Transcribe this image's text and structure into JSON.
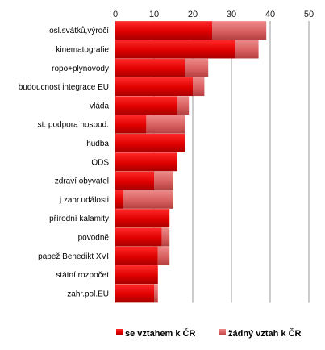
{
  "chart_data": {
    "type": "bar",
    "orientation": "horizontal",
    "stacked": true,
    "title": "",
    "xlabel": "",
    "ylabel": "",
    "xlim": [
      0,
      50
    ],
    "ticks": [
      0,
      10,
      20,
      30,
      40,
      50
    ],
    "grid": true,
    "legend_position": "bottom",
    "categories": [
      "osl.svátků,výročí",
      "kinematografie",
      "ropo+plynovody",
      "budoucnost integrace EU",
      "vláda",
      "st. podpora hospod.",
      "hudba",
      "ODS",
      "zdraví obyvatel",
      "j.zahr.události",
      "přírodní kalamity",
      "povodně",
      "papež Benedikt XVI",
      "státní rozpočet",
      "zahr.pol.EU"
    ],
    "series": [
      {
        "name": "se vztahem k ČR",
        "color": "#e00000",
        "values": [
          25,
          31,
          18,
          20,
          16,
          8,
          18,
          16,
          10,
          2,
          14,
          12,
          11,
          11,
          10
        ]
      },
      {
        "name": "žádný vztah k ČR",
        "color": "#d96060",
        "values": [
          14,
          6,
          6,
          3,
          3,
          10,
          0,
          0,
          5,
          13,
          0,
          2,
          3,
          0,
          1
        ]
      }
    ]
  }
}
